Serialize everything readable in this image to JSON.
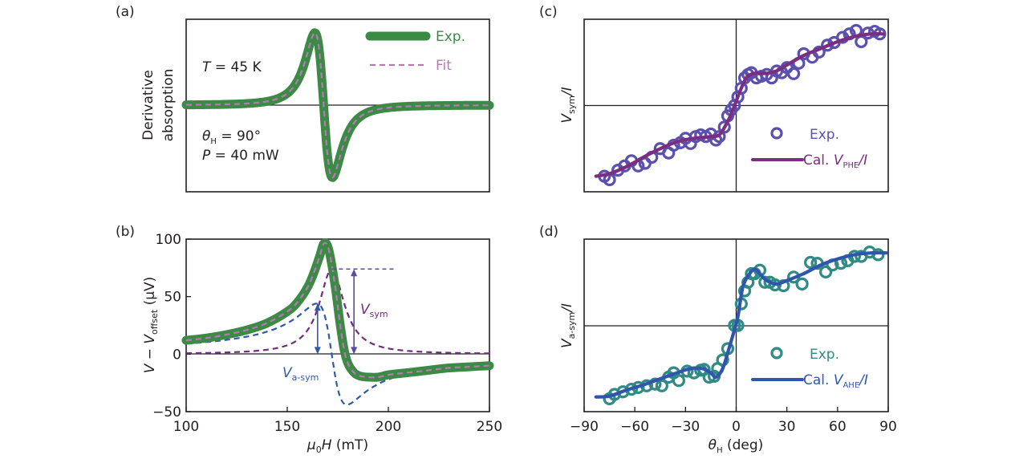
{
  "colors": {
    "exp_green": "#3d8a46",
    "fit_pink": "#b679b5",
    "sym_purple": "#6e2d7e",
    "asym_blue": "#2f5aa8",
    "vsym_arrow": "#5b4a9e",
    "c_points": "#5b50ae",
    "c_line": "#7b2d80",
    "d_points": "#2f8b84",
    "d_line": "#2f55ad",
    "axis": "#231f20"
  },
  "chart_data": [
    {
      "panel": "(a)",
      "type": "line",
      "ylabel_lines": [
        "Derivative",
        "absorption"
      ],
      "xlabel": "",
      "x_range": [
        100,
        250
      ],
      "y_range": [
        -1.1,
        1.1
      ],
      "annotations": [
        {
          "text_italic": "T",
          "text": " = 45 K"
        },
        {
          "text_italic": "θ",
          "sub": "H",
          "text": " = 90°"
        },
        {
          "text_italic": "P",
          "text": " = 40 mW"
        }
      ],
      "legend": {
        "placement": "top-right",
        "entries": [
          "Exp.",
          "Fit"
        ]
      },
      "series": [
        {
          "name": "Exp.",
          "style": "thick-solid",
          "x0": 168,
          "dH": 7.5,
          "amp": 1.0
        },
        {
          "name": "Fit",
          "style": "dashed",
          "x0": 168,
          "dH": 7.5,
          "amp": 1.0
        }
      ]
    },
    {
      "panel": "(b)",
      "type": "line",
      "xlabel": "μ0H (mT)",
      "ylabel": "V − Voffset (μV)",
      "xlim": [
        100,
        250
      ],
      "ylim": [
        -50,
        100
      ],
      "xticks": [
        "100",
        "150",
        "200",
        "250"
      ],
      "yticks": [
        "−50",
        "0",
        "50",
        "100"
      ],
      "annotations": [
        "Vsym",
        "Va-sym"
      ],
      "series": [
        {
          "name": "Exp.",
          "x": [
            100,
            110,
            120,
            130,
            140,
            150,
            155,
            160,
            163,
            166,
            168,
            170,
            172,
            174,
            176,
            178,
            180,
            183,
            186,
            190,
            195,
            200,
            210,
            220,
            230,
            240,
            250
          ],
          "y": [
            12,
            14,
            17,
            21,
            27,
            37,
            45,
            58,
            70,
            85,
            96,
            94,
            78,
            55,
            28,
            5,
            -8,
            -16,
            -19,
            -20,
            -20,
            -18,
            -16,
            -14,
            -12,
            -11,
            -10
          ]
        },
        {
          "name": "Vsym component",
          "x0": 172,
          "half_width": 7.5,
          "amp": 74
        },
        {
          "name": "Va-sym component",
          "x0": 172,
          "half_width": 7.5,
          "amp": 44
        },
        {
          "name": "Vsym level",
          "value": 74,
          "x_from": 172,
          "x_to": 203
        },
        {
          "name": "Vsym arrow",
          "x": 183,
          "from": 0,
          "to": 74
        },
        {
          "name": "Va-sym arrow",
          "x": 165,
          "from": 0,
          "to": 44
        }
      ]
    },
    {
      "panel": "(c)",
      "type": "scatter",
      "xlabel": "",
      "ylabel": "Vsym/I",
      "xlim": [
        -90,
        90
      ],
      "ylim": [
        -1,
        1
      ],
      "legend": {
        "placement": "bottom-right",
        "entries": [
          "Exp.",
          "Cal. VPHE/I"
        ]
      },
      "series": [
        {
          "name": "Exp.",
          "x": [
            -78,
            -75,
            -70,
            -66,
            -62,
            -58,
            -54,
            -50,
            -45,
            -40,
            -37,
            -33,
            -30,
            -27,
            -24,
            -21,
            -18,
            -15,
            -12,
            -10,
            -7,
            -5,
            -3,
            -1,
            1,
            3,
            5,
            7,
            9,
            12,
            15,
            18,
            21,
            24,
            27,
            30,
            34,
            37,
            40,
            45,
            49,
            54,
            58,
            63,
            67,
            71,
            74,
            78,
            82,
            85
          ],
          "y": [
            -0.82,
            -0.86,
            -0.75,
            -0.7,
            -0.64,
            -0.7,
            -0.67,
            -0.6,
            -0.5,
            -0.55,
            -0.46,
            -0.43,
            -0.38,
            -0.44,
            -0.36,
            -0.34,
            -0.36,
            -0.33,
            -0.4,
            -0.36,
            -0.25,
            -0.12,
            -0.05,
            0.0,
            0.1,
            0.2,
            0.32,
            0.36,
            0.38,
            0.32,
            0.34,
            0.36,
            0.32,
            0.4,
            0.38,
            0.44,
            0.37,
            0.49,
            0.6,
            0.56,
            0.62,
            0.7,
            0.73,
            0.79,
            0.83,
            0.87,
            0.74,
            0.84,
            0.86,
            0.83
          ]
        },
        {
          "name": "Cal. VPHE/I",
          "x": [
            -83,
            -75,
            -65,
            -55,
            -45,
            -35,
            -25,
            -15,
            -10,
            -6,
            -3,
            0,
            3,
            6,
            10,
            15,
            20,
            25,
            30,
            40,
            50,
            60,
            70,
            80,
            87
          ],
          "y": [
            -0.82,
            -0.79,
            -0.71,
            -0.6,
            -0.5,
            -0.42,
            -0.38,
            -0.36,
            -0.34,
            -0.22,
            -0.1,
            0.05,
            0.2,
            0.32,
            0.37,
            0.37,
            0.38,
            0.41,
            0.47,
            0.58,
            0.66,
            0.74,
            0.8,
            0.83,
            0.83
          ]
        }
      ]
    },
    {
      "panel": "(d)",
      "type": "scatter",
      "xlabel": "θH (deg)",
      "ylabel": "Va-sym/I",
      "xlim": [
        -90,
        90
      ],
      "ylim": [
        -1,
        1
      ],
      "xticks": [
        "−90",
        "−60",
        "−30",
        "0",
        "30",
        "60",
        "90"
      ],
      "legend": {
        "placement": "bottom-right",
        "entries": [
          "Exp.",
          "Cal. VAHE/I"
        ]
      },
      "series": [
        {
          "name": "Exp.",
          "x": [
            -75,
            -72,
            -67,
            -62,
            -58,
            -53,
            -48,
            -44,
            -40,
            -37,
            -34,
            -29,
            -25,
            -21,
            -19,
            -16,
            -13,
            -11,
            -8,
            -5,
            -1,
            1,
            3,
            5,
            7,
            9,
            11,
            14,
            17,
            20,
            23,
            28,
            34,
            39,
            44,
            48,
            53,
            57,
            62,
            66,
            70,
            74,
            79,
            84
          ],
          "y": [
            -0.85,
            -0.8,
            -0.77,
            -0.74,
            -0.72,
            -0.7,
            -0.68,
            -0.7,
            -0.6,
            -0.55,
            -0.64,
            -0.53,
            -0.55,
            -0.52,
            -0.51,
            -0.6,
            -0.59,
            -0.5,
            -0.4,
            -0.27,
            0.0,
            0.0,
            0.25,
            0.4,
            0.5,
            0.6,
            0.6,
            0.64,
            0.5,
            0.5,
            0.47,
            0.46,
            0.56,
            0.48,
            0.73,
            0.72,
            0.62,
            0.7,
            0.72,
            0.75,
            0.8,
            0.8,
            0.85,
            0.82
          ]
        },
        {
          "name": "Cal. VAHE/I",
          "x": [
            -83,
            -75,
            -65,
            -55,
            -45,
            -35,
            -27,
            -20,
            -15,
            -12,
            -8,
            -4,
            -1,
            1,
            4,
            8,
            11,
            14,
            18,
            24,
            30,
            40,
            50,
            60,
            70,
            80,
            89
          ],
          "y": [
            -0.83,
            -0.82,
            -0.75,
            -0.69,
            -0.62,
            -0.55,
            -0.5,
            -0.5,
            -0.55,
            -0.6,
            -0.5,
            -0.25,
            -0.05,
            0.1,
            0.45,
            0.6,
            0.65,
            0.6,
            0.52,
            0.48,
            0.52,
            0.6,
            0.7,
            0.77,
            0.82,
            0.84,
            0.84
          ]
        }
      ]
    }
  ],
  "panel_labels": [
    "(a)",
    "(b)",
    "(c)",
    "(d)"
  ],
  "text": {
    "a_ylabel_1": "Derivative",
    "a_ylabel_2": "absorption",
    "a_T_var": "T",
    "a_T_val": " = 45 K",
    "a_theta_var": "θ",
    "a_theta_sub": "H",
    "a_theta_val": " = 90°",
    "a_P_var": "P",
    "a_P_val": " = 40 mW",
    "a_leg_exp": "Exp.",
    "a_leg_fit": "Fit",
    "b_ylabel_V": "V",
    "b_ylabel_minus": " − ",
    "b_ylabel_V2": "V",
    "b_ylabel_sub": "offset",
    "b_ylabel_unit": " (μV)",
    "b_xlabel_mu": "μ",
    "b_xlabel_sub": "0",
    "b_xlabel_H": "H",
    "b_xlabel_unit": " (mT)",
    "b_vsym_V": "V",
    "b_vsym_sub": "sym",
    "b_vasym_V": "V",
    "b_vasym_sub": "a-sym",
    "c_ylabel_V": "V",
    "c_ylabel_sub": "sym",
    "c_ylabel_rest": "/I",
    "c_leg_exp": "Exp.",
    "c_leg_cal": "Cal. ",
    "c_leg_V": "V",
    "c_leg_sub": "PHE",
    "c_leg_rest": "/I",
    "d_ylabel_V": "V",
    "d_ylabel_sub": "a-sym",
    "d_ylabel_rest": "/I",
    "d_leg_exp": "Exp.",
    "d_leg_cal": "Cal. ",
    "d_leg_V": "V",
    "d_leg_sub": "AHE",
    "d_leg_rest": "/I",
    "d_xlabel_theta": "θ",
    "d_xlabel_sub": "H",
    "d_xlabel_unit": " (deg)"
  }
}
